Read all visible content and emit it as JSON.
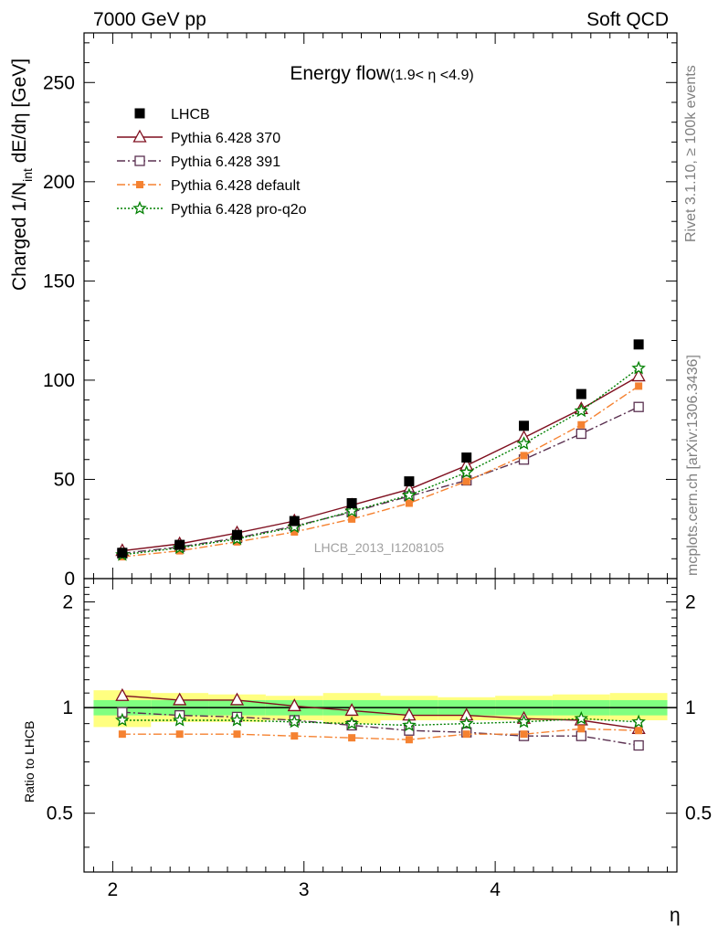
{
  "header": {
    "left": "7000 GeV pp",
    "right": "Soft QCD"
  },
  "side": {
    "rivet": "Rivet 3.1.10, ≥ 100k events",
    "source": "mcplots.cern.ch [arXiv:1306.3436]"
  },
  "watermark": "LHCB_2013_I1208105",
  "colors": {
    "LHCB": "#000000",
    "p370": "#7f0f1f",
    "p391": "#5a3050",
    "pdefault": "#f58231",
    "pq2o": "#008000",
    "band_inner": "#80ff80",
    "band_outer": "#ffff80"
  },
  "chart_data": [
    {
      "type": "line",
      "title": "Energy flow",
      "title_sub": "(1.9< η <4.9)",
      "ylabel_main": "Charged 1/N",
      "ylabel_sub": "int",
      "ylabel_rest": " dE/dη [GeV]",
      "xlim": [
        1.85,
        4.95
      ],
      "ylim": [
        0,
        275
      ],
      "yticks": [
        0,
        50,
        100,
        150,
        200,
        250
      ],
      "legend_position": "top-left",
      "x": [
        2.05,
        2.35,
        2.65,
        2.95,
        3.25,
        3.55,
        3.85,
        4.15,
        4.45,
        4.75
      ],
      "series": [
        {
          "name": "LHCB",
          "values": [
            13,
            17,
            22,
            29,
            38,
            49,
            61,
            77,
            93,
            118
          ]
        },
        {
          "name": "Pythia 6.428 370",
          "values": [
            14,
            17.5,
            23,
            29,
            37,
            45,
            57,
            71,
            85.5,
            102
          ]
        },
        {
          "name": "Pythia 6.428 391",
          "values": [
            12.7,
            16,
            20.5,
            26.5,
            33.5,
            41.5,
            49.5,
            60,
            73,
            86.5
          ]
        },
        {
          "name": "Pythia 6.428 default",
          "values": [
            11,
            14,
            18.5,
            23.5,
            30,
            38,
            49,
            62,
            77.5,
            97
          ]
        },
        {
          "name": "Pythia 6.428 pro-q2o",
          "values": [
            12,
            15.5,
            20,
            26,
            34,
            42,
            53.5,
            68,
            84.5,
            106
          ]
        }
      ]
    },
    {
      "type": "line",
      "ylabel": "Ratio to LHCB",
      "xlabel": "η",
      "xlim": [
        1.85,
        4.95
      ],
      "ylim": [
        0.34,
        2.33
      ],
      "ylog": true,
      "yticks": [
        0.5,
        1,
        2
      ],
      "xticks": [
        2,
        3,
        4
      ],
      "x": [
        2.05,
        2.35,
        2.65,
        2.95,
        3.25,
        3.55,
        3.85,
        4.15,
        4.45,
        4.75
      ],
      "bin_edges": [
        1.9,
        2.2,
        2.5,
        2.8,
        3.1,
        3.4,
        3.7,
        4.0,
        4.3,
        4.6,
        4.9
      ],
      "band_inner": {
        "lo": [
          0.95,
          0.95,
          0.95,
          0.95,
          0.95,
          0.95,
          0.95,
          0.95,
          0.95,
          0.95
        ],
        "hi": [
          1.05,
          1.05,
          1.05,
          1.05,
          1.05,
          1.05,
          1.05,
          1.05,
          1.05,
          1.05
        ]
      },
      "band_outer": {
        "lo": [
          0.88,
          0.91,
          0.91,
          0.92,
          0.9,
          0.92,
          0.92,
          0.92,
          0.92,
          0.92
        ],
        "hi": [
          1.12,
          1.1,
          1.09,
          1.08,
          1.1,
          1.08,
          1.07,
          1.08,
          1.09,
          1.1
        ]
      },
      "series": [
        {
          "name": "Pythia 6.428 370",
          "values": [
            1.08,
            1.05,
            1.05,
            1.01,
            0.98,
            0.95,
            0.95,
            0.93,
            0.92,
            0.87
          ]
        },
        {
          "name": "Pythia 6.428 391",
          "values": [
            0.97,
            0.95,
            0.94,
            0.92,
            0.89,
            0.86,
            0.85,
            0.83,
            0.83,
            0.78
          ]
        },
        {
          "name": "Pythia 6.428 default",
          "values": [
            0.84,
            0.84,
            0.84,
            0.83,
            0.82,
            0.81,
            0.84,
            0.84,
            0.87,
            0.86
          ]
        },
        {
          "name": "Pythia 6.428 pro-q2o",
          "values": [
            0.92,
            0.92,
            0.92,
            0.91,
            0.9,
            0.89,
            0.9,
            0.91,
            0.93,
            0.91
          ]
        }
      ]
    }
  ]
}
